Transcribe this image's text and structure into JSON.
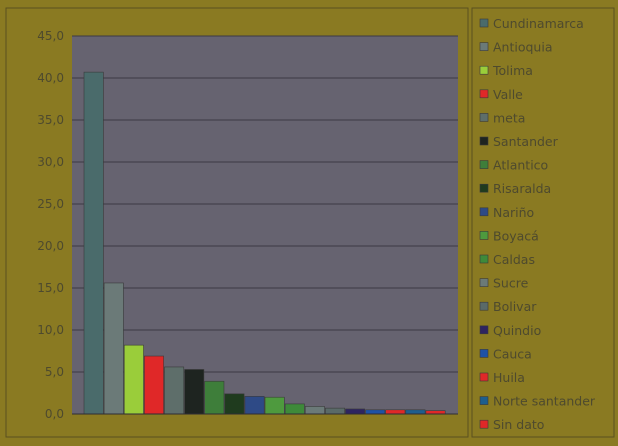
{
  "chart_data": {
    "type": "bar",
    "title": "",
    "xlabel": "",
    "ylabel": "",
    "ylim": [
      0,
      45
    ],
    "yticks": [
      "0,0",
      "5,0",
      "10,0",
      "15,0",
      "20,0",
      "25,0",
      "30,0",
      "35,0",
      "40,0",
      "45,0"
    ],
    "grid": true,
    "legend_position": "right",
    "categories": [
      "Cundinamarca",
      "Antioquia",
      "Tolima",
      "Valle",
      "meta",
      "Santander",
      "Atlantico",
      "Risaralda",
      "Nariño",
      "Boyacá",
      "Caldas",
      "Sucre",
      "Bolivar",
      "Quindio",
      "Cauca",
      "Huila",
      "Norte santander",
      "Sin dato"
    ],
    "values": [
      40.7,
      15.6,
      8.2,
      6.9,
      5.6,
      5.3,
      3.9,
      2.4,
      2.1,
      2.0,
      1.2,
      0.9,
      0.7,
      0.6,
      0.5,
      0.5,
      0.5,
      0.4
    ],
    "colors": [
      "#4a6b6b",
      "#6b7a78",
      "#9acd3a",
      "#e02828",
      "#5e6e6a",
      "#1e2420",
      "#3e7e3a",
      "#1f3b1e",
      "#2e4a86",
      "#4e9a3e",
      "#3e8a3a",
      "#6b7a78",
      "#5a6a68",
      "#2e2460",
      "#1e52a6",
      "#e02828",
      "#1e5e8e",
      "#e02828"
    ]
  },
  "colors": {
    "frame_background": "#8a7a22",
    "plot_background": "#666370",
    "gridline": "#3c3a44",
    "text": "#4e4a2e",
    "border": "#5a5020"
  }
}
